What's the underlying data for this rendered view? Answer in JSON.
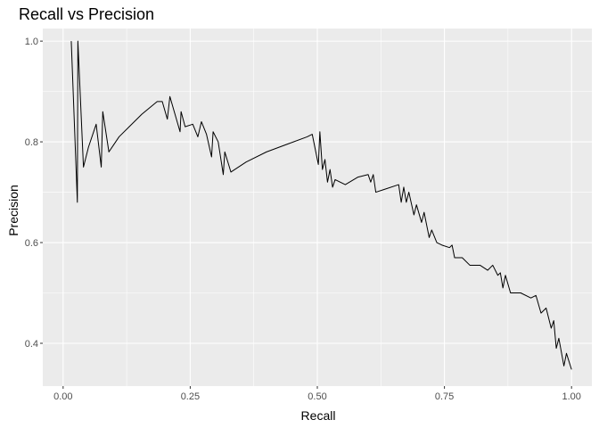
{
  "chart_data": {
    "type": "line",
    "title": "Recall vs Precision",
    "xlabel": "Recall",
    "ylabel": "Precision",
    "xlim": [
      -0.04,
      1.04
    ],
    "ylim": [
      0.315,
      1.025
    ],
    "grid": true,
    "x_ticks": [
      {
        "value": 0.0,
        "label": "0.00"
      },
      {
        "value": 0.25,
        "label": "0.25"
      },
      {
        "value": 0.5,
        "label": "0.50"
      },
      {
        "value": 0.75,
        "label": "0.75"
      },
      {
        "value": 1.0,
        "label": "1.00"
      }
    ],
    "y_ticks": [
      {
        "value": 0.4,
        "label": "0.4"
      },
      {
        "value": 0.6,
        "label": "0.6"
      },
      {
        "value": 0.8,
        "label": "0.8"
      },
      {
        "value": 1.0,
        "label": "1.0"
      }
    ],
    "colors": {
      "panel": "#ebebeb",
      "grid": "#ffffff",
      "line": "#000000"
    },
    "series": [
      {
        "points": [
          [
            0.016,
            1.0
          ],
          [
            0.028,
            0.68
          ],
          [
            0.029,
            1.0
          ],
          [
            0.04,
            0.75
          ],
          [
            0.05,
            0.79
          ],
          [
            0.065,
            0.835
          ],
          [
            0.075,
            0.75
          ],
          [
            0.078,
            0.86
          ],
          [
            0.09,
            0.78
          ],
          [
            0.11,
            0.81
          ],
          [
            0.13,
            0.83
          ],
          [
            0.155,
            0.855
          ],
          [
            0.185,
            0.88
          ],
          [
            0.195,
            0.88
          ],
          [
            0.205,
            0.845
          ],
          [
            0.21,
            0.89
          ],
          [
            0.23,
            0.82
          ],
          [
            0.232,
            0.86
          ],
          [
            0.24,
            0.83
          ],
          [
            0.255,
            0.835
          ],
          [
            0.265,
            0.81
          ],
          [
            0.272,
            0.84
          ],
          [
            0.282,
            0.815
          ],
          [
            0.292,
            0.77
          ],
          [
            0.295,
            0.82
          ],
          [
            0.305,
            0.8
          ],
          [
            0.315,
            0.735
          ],
          [
            0.318,
            0.78
          ],
          [
            0.33,
            0.74
          ],
          [
            0.36,
            0.76
          ],
          [
            0.4,
            0.78
          ],
          [
            0.44,
            0.795
          ],
          [
            0.48,
            0.81
          ],
          [
            0.49,
            0.815
          ],
          [
            0.502,
            0.755
          ],
          [
            0.505,
            0.82
          ],
          [
            0.51,
            0.745
          ],
          [
            0.515,
            0.765
          ],
          [
            0.52,
            0.72
          ],
          [
            0.525,
            0.745
          ],
          [
            0.53,
            0.71
          ],
          [
            0.535,
            0.725
          ],
          [
            0.555,
            0.715
          ],
          [
            0.58,
            0.73
          ],
          [
            0.6,
            0.735
          ],
          [
            0.605,
            0.72
          ],
          [
            0.61,
            0.735
          ],
          [
            0.615,
            0.7
          ],
          [
            0.63,
            0.705
          ],
          [
            0.66,
            0.715
          ],
          [
            0.665,
            0.68
          ],
          [
            0.67,
            0.71
          ],
          [
            0.675,
            0.68
          ],
          [
            0.68,
            0.7
          ],
          [
            0.69,
            0.655
          ],
          [
            0.695,
            0.675
          ],
          [
            0.705,
            0.64
          ],
          [
            0.71,
            0.66
          ],
          [
            0.72,
            0.61
          ],
          [
            0.725,
            0.625
          ],
          [
            0.735,
            0.6
          ],
          [
            0.745,
            0.595
          ],
          [
            0.76,
            0.59
          ],
          [
            0.765,
            0.595
          ],
          [
            0.77,
            0.57
          ],
          [
            0.785,
            0.57
          ],
          [
            0.8,
            0.555
          ],
          [
            0.82,
            0.555
          ],
          [
            0.835,
            0.545
          ],
          [
            0.845,
            0.555
          ],
          [
            0.855,
            0.535
          ],
          [
            0.86,
            0.54
          ],
          [
            0.865,
            0.51
          ],
          [
            0.87,
            0.535
          ],
          [
            0.88,
            0.5
          ],
          [
            0.9,
            0.5
          ],
          [
            0.92,
            0.49
          ],
          [
            0.93,
            0.495
          ],
          [
            0.94,
            0.46
          ],
          [
            0.95,
            0.47
          ],
          [
            0.96,
            0.43
          ],
          [
            0.965,
            0.445
          ],
          [
            0.97,
            0.39
          ],
          [
            0.975,
            0.41
          ],
          [
            0.985,
            0.355
          ],
          [
            0.99,
            0.38
          ],
          [
            1.0,
            0.348
          ]
        ]
      }
    ]
  }
}
